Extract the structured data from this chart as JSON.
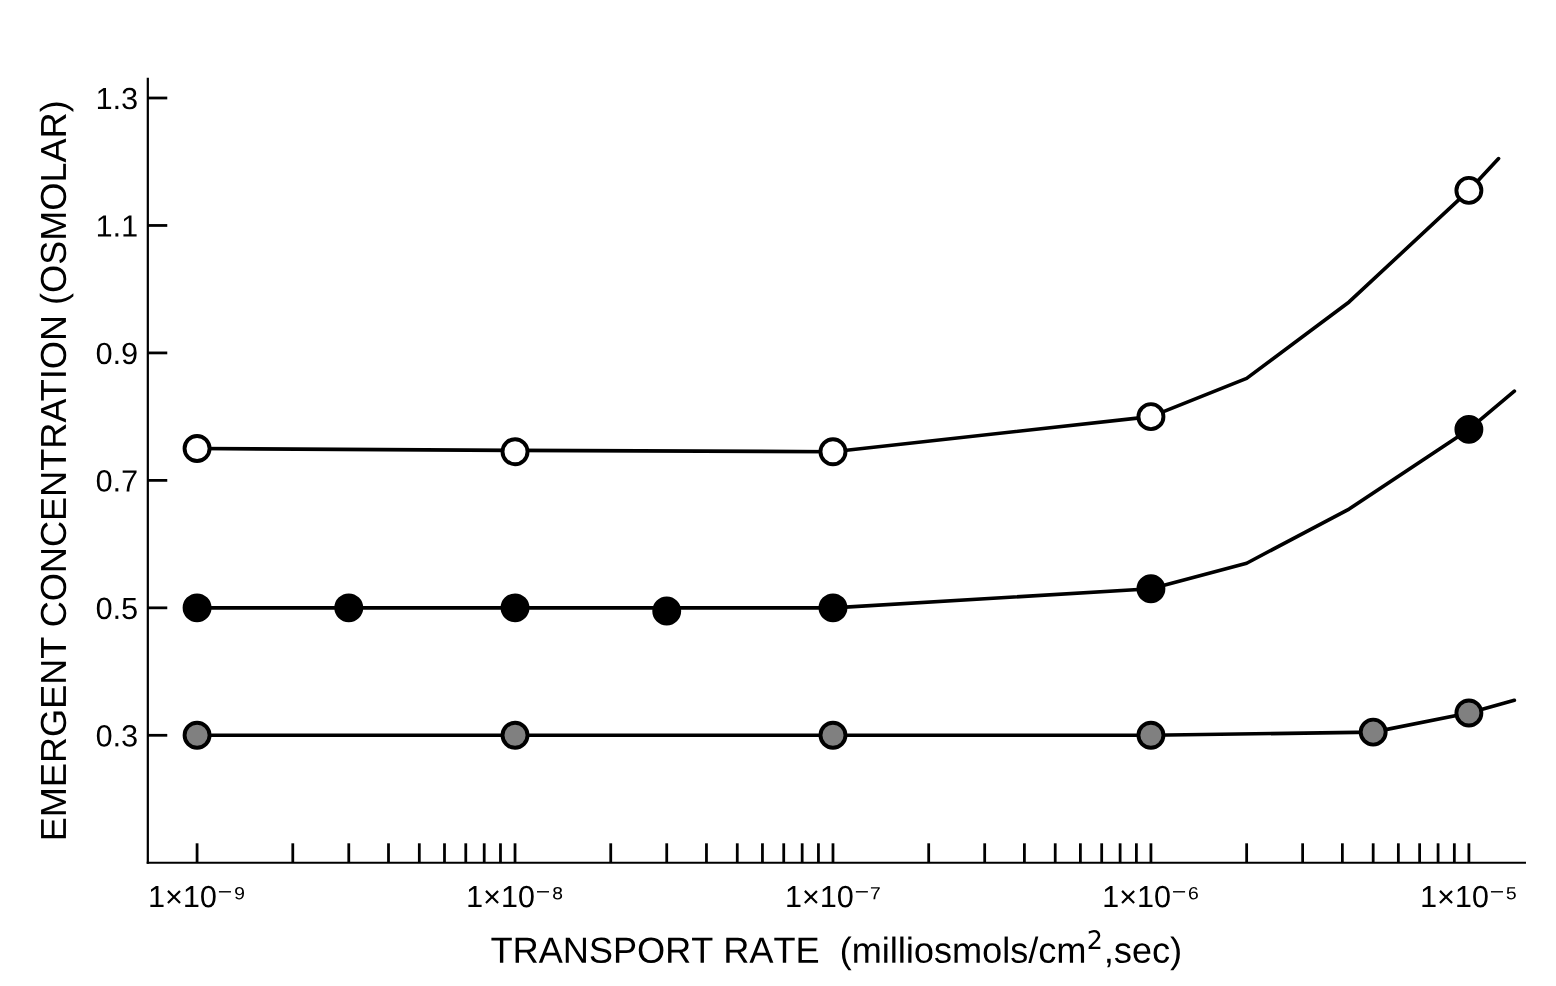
{
  "chart_data": {
    "type": "line",
    "xlabel": "TRANSPORT RATE  (milliosmols/cm$^{2}$,sec)",
    "ylabel": "EMERGENT CONCENTRATION (OSMOLAR)",
    "log": "x",
    "grid": false,
    "legend": false,
    "xlim": [
      7e-10,
      1.5e-05
    ],
    "ylim": [
      0.1,
      1.33
    ],
    "yticks": [
      0.3,
      0.5,
      0.7,
      0.9,
      1.1,
      1.3
    ],
    "xticks": [
      {
        "value": 1e-09,
        "label": "1×10⁻⁹"
      },
      {
        "value": 2e-09,
        "label": null
      },
      {
        "value": 3e-09,
        "label": null
      },
      {
        "value": 4e-09,
        "label": null
      },
      {
        "value": 5e-09,
        "label": null
      },
      {
        "value": 6e-09,
        "label": null
      },
      {
        "value": 7e-09,
        "label": null
      },
      {
        "value": 8e-09,
        "label": null
      },
      {
        "value": 9e-09,
        "label": null
      },
      {
        "value": 1e-08,
        "label": "1×10⁻⁸"
      },
      {
        "value": 2e-08,
        "label": null
      },
      {
        "value": 3e-08,
        "label": null
      },
      {
        "value": 4e-08,
        "label": null
      },
      {
        "value": 5e-08,
        "label": null
      },
      {
        "value": 6e-08,
        "label": null
      },
      {
        "value": 7e-08,
        "label": null
      },
      {
        "value": 8e-08,
        "label": null
      },
      {
        "value": 9e-08,
        "label": null
      },
      {
        "value": 1e-07,
        "label": "1×10⁻⁷"
      },
      {
        "value": 2e-07,
        "label": null
      },
      {
        "value": 3e-07,
        "label": null
      },
      {
        "value": 4e-07,
        "label": null
      },
      {
        "value": 5e-07,
        "label": null
      },
      {
        "value": 6e-07,
        "label": null
      },
      {
        "value": 7e-07,
        "label": null
      },
      {
        "value": 8e-07,
        "label": null
      },
      {
        "value": 9e-07,
        "label": null
      },
      {
        "value": 1e-06,
        "label": "1×10⁻⁶"
      },
      {
        "value": 2e-06,
        "label": null
      },
      {
        "value": 3e-06,
        "label": null
      },
      {
        "value": 4e-06,
        "label": null
      },
      {
        "value": 5e-06,
        "label": null
      },
      {
        "value": 6e-06,
        "label": null
      },
      {
        "value": 7e-06,
        "label": null
      },
      {
        "value": 8e-06,
        "label": null
      },
      {
        "value": 9e-06,
        "label": null
      },
      {
        "value": 1e-05,
        "label": "1×10⁻⁵"
      }
    ],
    "series": [
      {
        "color": "#000000",
        "marker": "none",
        "x": [
          1e-09,
          1e-08,
          1e-07,
          1e-06,
          2e-06,
          4.2e-06,
          1e-05,
          1.24e-05
        ],
        "values": [
          0.75,
          0.747,
          0.745,
          0.8,
          0.86,
          0.98,
          1.155,
          1.205
        ]
      },
      {
        "color": "#000000",
        "marker": "none",
        "x": [
          1e-09,
          1e-08,
          1e-07,
          1e-06,
          2e-06,
          4.2e-06,
          1e-05,
          1.39e-05
        ],
        "values": [
          0.5,
          0.5,
          0.5,
          0.53,
          0.57,
          0.655,
          0.78,
          0.84
        ]
      },
      {
        "color": "#000000",
        "marker": "none",
        "x": [
          1e-09,
          1e-08,
          1e-07,
          1e-06,
          5e-06,
          1e-05,
          1.39e-05
        ],
        "values": [
          0.3,
          0.3,
          0.3,
          0.3,
          0.305,
          0.335,
          0.355
        ]
      },
      {
        "type": "scatter",
        "color": "#ffffff",
        "marker": "circle",
        "x": [
          1e-09,
          1e-08,
          1e-07,
          1e-06,
          1e-05
        ],
        "values": [
          0.75,
          0.745,
          0.745,
          0.8,
          1.155
        ]
      },
      {
        "type": "scatter",
        "color": "#000000",
        "marker": "circle",
        "x": [
          1e-09,
          3e-09,
          1e-08,
          3e-08,
          1e-07,
          1e-06,
          1e-05
        ],
        "values": [
          0.5,
          0.5,
          0.5,
          0.495,
          0.5,
          0.53,
          0.78
        ]
      },
      {
        "type": "scatter",
        "color": "#808080",
        "marker": "circle",
        "x": [
          1e-09,
          1e-08,
          1e-07,
          1e-06,
          5e-06,
          1e-05
        ],
        "values": [
          0.3,
          0.3,
          0.3,
          0.3,
          0.305,
          0.335
        ]
      }
    ]
  }
}
